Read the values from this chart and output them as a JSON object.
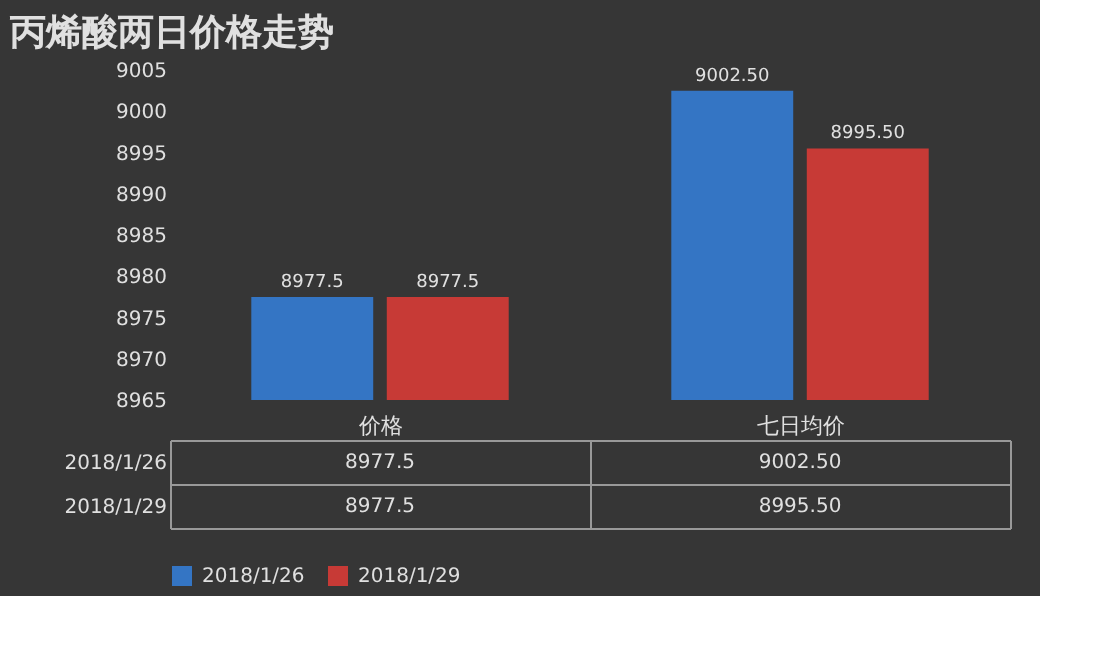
{
  "chart_data": {
    "type": "bar",
    "title": "丙烯酸两日价格走势",
    "categories": [
      "价格",
      "七日均价"
    ],
    "series": [
      {
        "name": "2018/1/26",
        "color": "#3475c4",
        "values": [
          8977.5,
          9002.5
        ],
        "value_labels": [
          "8977.5",
          "9002.50"
        ]
      },
      {
        "name": "2018/1/29",
        "color": "#c73a36",
        "values": [
          8977.5,
          8995.5
        ],
        "value_labels": [
          "8977.5",
          "8995.50"
        ]
      }
    ],
    "ylim": [
      8965,
      9005
    ],
    "yticks": [
      8965,
      8970,
      8975,
      8980,
      8985,
      8990,
      8995,
      9000,
      9005
    ],
    "grid": false,
    "legend": "bottom",
    "data_labels": true
  }
}
